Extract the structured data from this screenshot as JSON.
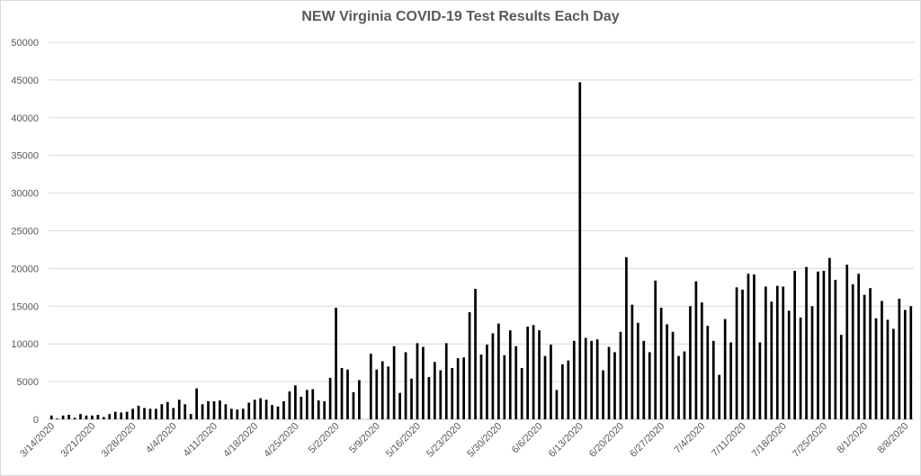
{
  "chart_data": {
    "type": "bar",
    "title": "NEW Virginia COVID-19 Test Results Each Day",
    "xlabel": "",
    "ylabel": "",
    "ylim": [
      0,
      50000
    ],
    "y_ticks": [
      "0",
      "5000",
      "10000",
      "15000",
      "20000",
      "25000",
      "30000",
      "35000",
      "40000",
      "45000",
      "50000"
    ],
    "x_tick_labels": [
      "3/14/2020",
      "3/21/2020",
      "3/28/2020",
      "4/4/2020",
      "4/11/2020",
      "4/18/2020",
      "4/25/2020",
      "5/2/2020",
      "5/9/2020",
      "5/16/2020",
      "5/23/2020",
      "5/30/2020",
      "6/6/2020",
      "6/13/2020",
      "6/20/2020",
      "6/27/2020",
      "7/4/2020",
      "7/11/2020",
      "7/18/2020",
      "7/25/2020",
      "8/1/2020",
      "8/8/2020"
    ],
    "grid": true,
    "color": "#000000",
    "x_start": "3/14/2020",
    "values": [
      500,
      100,
      500,
      600,
      200,
      700,
      500,
      500,
      600,
      300,
      700,
      1000,
      900,
      1000,
      1400,
      1800,
      1500,
      1400,
      1400,
      2000,
      2300,
      1500,
      2600,
      2000,
      700,
      4100,
      2000,
      2400,
      2400,
      2500,
      2000,
      1400,
      1300,
      1400,
      2200,
      2600,
      2800,
      2600,
      1900,
      1700,
      2400,
      3700,
      4500,
      3000,
      3900,
      4000,
      2500,
      2400,
      5500,
      14800,
      6800,
      6600,
      3600,
      5200,
      0,
      8700,
      6600,
      7700,
      7000,
      9700,
      3500,
      8900,
      5400,
      10100,
      9600,
      5600,
      7600,
      6500,
      10100,
      6800,
      8100,
      8200,
      14200,
      17300,
      8600,
      9900,
      11400,
      12700,
      8500,
      11800,
      9700,
      6800,
      12300,
      12500,
      11800,
      8400,
      9900,
      3900,
      7300,
      7800,
      10400,
      44700,
      10800,
      10400,
      10600,
      6500,
      9600,
      8900,
      11600,
      21500,
      15200,
      12800,
      10400,
      8900,
      18400,
      14800,
      12600,
      11600,
      8400,
      9000,
      15000,
      18300,
      15500,
      12400,
      10400,
      5900,
      13300,
      10200,
      17500,
      17200,
      19300,
      19200,
      10200,
      17600,
      15600,
      17700,
      17600,
      14400,
      19700,
      13500,
      20200,
      15000,
      19600,
      19700,
      21400,
      18500,
      11200,
      20500,
      17900,
      19300,
      16500,
      17400,
      13400,
      15700,
      13200,
      12000,
      16000,
      14500,
      15000
    ]
  }
}
